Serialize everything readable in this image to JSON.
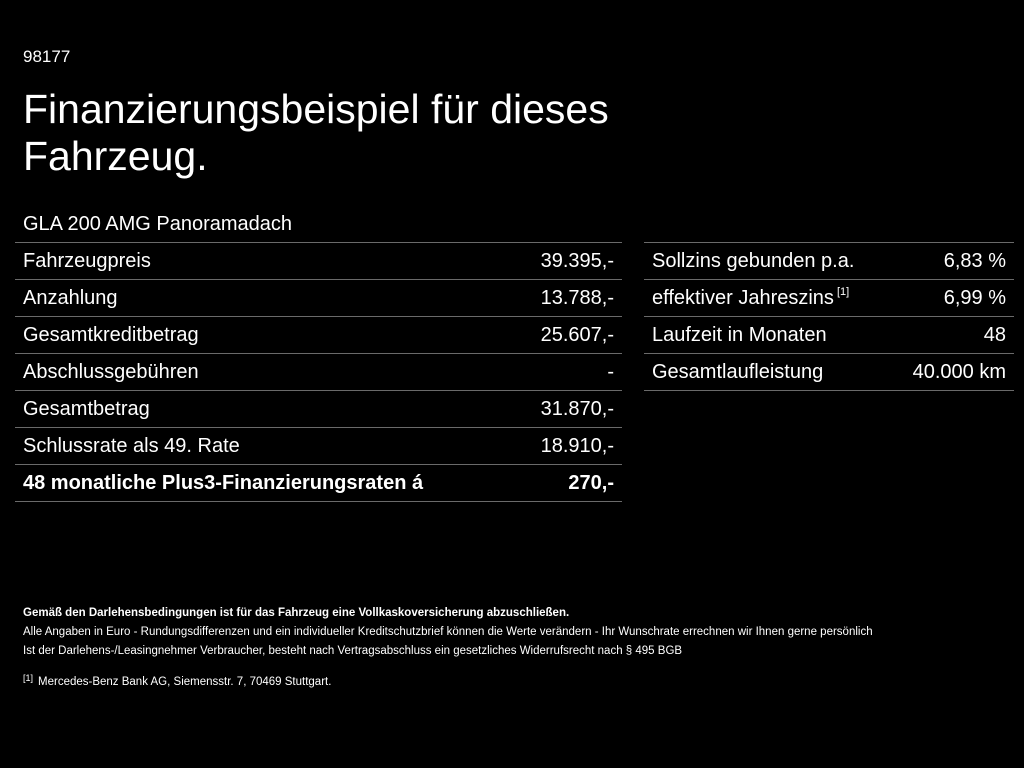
{
  "header": {
    "id": "98177",
    "title": "Finanzierungsbeispiel für dieses Fahrzeug.",
    "model": "GLA 200 AMG Panoramadach"
  },
  "financing_left": [
    {
      "label": "Fahrzeugpreis",
      "value": "39.395,-"
    },
    {
      "label": "Anzahlung",
      "value": "13.788,-"
    },
    {
      "label": "Gesamtkreditbetrag",
      "value": "25.607,-"
    },
    {
      "label": "Abschlussgebühren",
      "value": "-"
    },
    {
      "label": "Gesamtbetrag",
      "value": "31.870,-"
    },
    {
      "label": "Schlussrate als 49. Rate",
      "value": "18.910,-"
    },
    {
      "label": "48 monatliche Plus3-Finanzierungsraten á",
      "value": "270,-"
    }
  ],
  "financing_right": [
    {
      "label": "Sollzins gebunden p.a.",
      "value": "6,83 %"
    },
    {
      "label": "effektiver Jahreszins",
      "ref": "[1]",
      "value": "6,99 %"
    },
    {
      "label": "Laufzeit in Monaten",
      "value": "48"
    },
    {
      "label": "Gesamtlaufleistung",
      "value": "40.000 km"
    }
  ],
  "notes": {
    "insurance": "Gemäß den Darlehensbedingungen ist für das Fahrzeug eine Vollkaskoversicherung abzuschließen.",
    "disclaimer": "Alle Angaben in Euro - Rundungsdifferenzen und ein individueller Kreditschutzbrief können die Werte verändern - Ihr Wunschrate errechnen wir Ihnen gerne persönlich",
    "withdrawal": "Ist der Darlehens-/Leasingnehmer Verbraucher, besteht nach Vertragsabschluss ein gesetzliches Widerrufsrecht nach § 495 BGB"
  },
  "footnote": {
    "marker": "[1]",
    "text": "Mercedes-Benz Bank AG, Siemensstr. 7, 70469 Stuttgart."
  }
}
